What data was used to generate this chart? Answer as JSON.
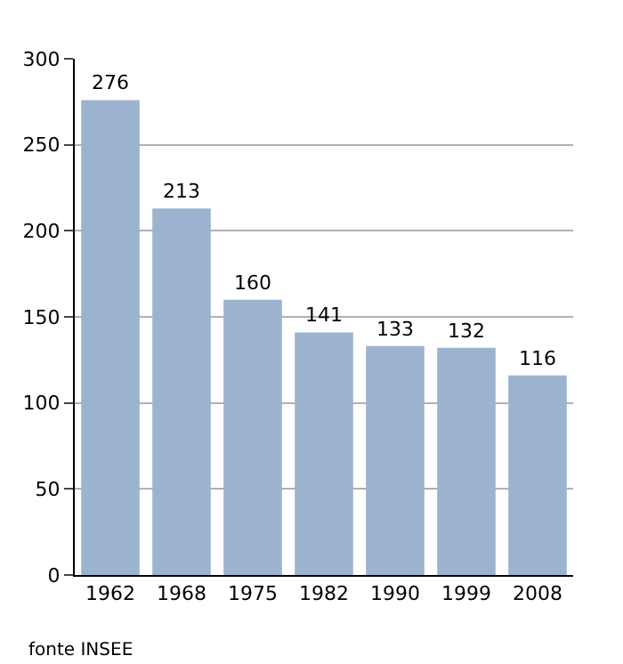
{
  "chart_data": {
    "type": "bar",
    "categories": [
      "1962",
      "1968",
      "1975",
      "1982",
      "1990",
      "1999",
      "2008"
    ],
    "values": [
      276,
      213,
      160,
      141,
      133,
      132,
      116
    ],
    "color": "#9bb3cf",
    "ylim": [
      0,
      300
    ],
    "yticks": [
      0,
      50,
      100,
      150,
      200,
      250,
      300
    ],
    "grid": "y",
    "data_labels": true,
    "annotations": [
      "fonte INSEE"
    ]
  }
}
